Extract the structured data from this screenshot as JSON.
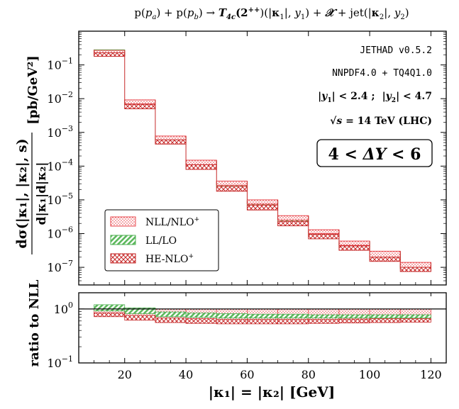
{
  "chart_data": {
    "type": "step-band",
    "title": "p(p_a) + p(p_b) → T_4c(2⁺⁺)(|κ₁|, y₁) + 𝒳 + jet(|κ₂|, y₂)",
    "title_parts": [
      "p(",
      "p",
      "a",
      ") + p(",
      "p",
      "b",
      ") → ",
      "T",
      "4c",
      "(2",
      "++",
      ")(|",
      "κ",
      "1",
      "|, ",
      "y",
      "1",
      ") + ",
      "𝒳",
      " + jet(|",
      "κ",
      "2",
      "|, ",
      "y",
      "2",
      ")"
    ],
    "xlabel": "|κ₁| = |κ₂| [GeV]",
    "ylabel_main": "dσ(|κ₁|, |κ₂|, s) / d|κ₁|d|κ₂| [pb/GeV²]",
    "ylabel_main_parts": {
      "num": "dσ(|κ₁|, |κ₂|, s)",
      "den": "d|κ₁|d|κ₂|",
      "unit": "[pb/GeV²]"
    },
    "ylabel_ratio": "ratio to NLL",
    "xlim": [
      5,
      125
    ],
    "ylim_main": [
      3e-08,
      1
    ],
    "ylim_ratio": [
      0.1,
      2
    ],
    "xticks": [
      20,
      40,
      60,
      80,
      100,
      120
    ],
    "xtick_labels": [
      "20",
      "40",
      "60",
      "80",
      "100",
      "120"
    ],
    "yticks_main": [
      {
        "m": "10",
        "e": "−1",
        "v": 0.1
      },
      {
        "m": "10",
        "e": "−2",
        "v": 0.01
      },
      {
        "m": "10",
        "e": "−3",
        "v": 0.001
      },
      {
        "m": "10",
        "e": "−4",
        "v": 0.0001
      },
      {
        "m": "10",
        "e": "−5",
        "v": 1e-05
      },
      {
        "m": "10",
        "e": "−6",
        "v": 1e-06
      },
      {
        "m": "10",
        "e": "−7",
        "v": 1e-07
      }
    ],
    "yticks_ratio": [
      {
        "m": "10",
        "e": "0",
        "v": 1
      },
      {
        "m": "10",
        "e": "−1",
        "v": 0.1
      }
    ],
    "bins": [
      [
        10,
        20
      ],
      [
        20,
        30
      ],
      [
        30,
        40
      ],
      [
        40,
        50
      ],
      [
        50,
        60
      ],
      [
        60,
        70
      ],
      [
        70,
        80
      ],
      [
        80,
        90
      ],
      [
        90,
        100
      ],
      [
        100,
        110
      ],
      [
        110,
        120
      ]
    ],
    "series": [
      {
        "name": "NLL/NLO⁺",
        "label_parts": [
          "NLL/NLO",
          "+"
        ],
        "color": "#e8474d",
        "low": [
          0.2,
          0.007,
          0.0006,
          0.00011,
          2.7e-05,
          7.5e-06,
          2.5e-06,
          1e-06,
          4.5e-07,
          2e-07,
          1e-07
        ],
        "high": [
          0.27,
          0.0092,
          0.00078,
          0.00015,
          3.6e-05,
          1e-05,
          3.4e-06,
          1.3e-06,
          6e-07,
          3e-07,
          1.4e-07
        ]
      },
      {
        "name": "LL/LO",
        "label_parts": [
          "LL/LO",
          ""
        ],
        "color": "#4caf50",
        "low": [
          0.19,
          0.0065,
          0.00058,
          0.000105,
          2.5e-05,
          6.8e-06,
          2.2e-06,
          9e-07,
          4e-07,
          1.8e-07,
          9e-08
        ],
        "high": [
          0.28,
          0.0088,
          0.00075,
          0.00014,
          3.3e-05,
          9e-06,
          3.1e-06,
          1.2e-06,
          5.5e-07,
          2.6e-07,
          1.2e-07
        ]
      },
      {
        "name": "HE-NLO⁺",
        "label_parts": [
          "HE-NLO",
          "+"
        ],
        "color": "#c62828",
        "low": [
          0.18,
          0.005,
          0.00045,
          8e-05,
          1.8e-05,
          5e-06,
          1.7e-06,
          7e-07,
          3.2e-07,
          1.5e-07,
          7.5e-08
        ],
        "high": [
          0.23,
          0.0068,
          0.0006,
          0.00011,
          2.5e-05,
          7e-06,
          2.3e-06,
          9.5e-07,
          4.3e-07,
          2e-07,
          1e-07
        ]
      }
    ],
    "ratio_series": [
      {
        "name": "NLL/NLO⁺",
        "low": [
          0.8,
          0.68,
          0.6,
          0.59,
          0.58,
          0.58,
          0.59,
          0.6,
          0.61,
          0.62,
          0.62
        ],
        "high": [
          1.0,
          1.0,
          1.0,
          1.0,
          1.0,
          1.0,
          1.0,
          1.0,
          1.0,
          1.0,
          1.0
        ]
      },
      {
        "name": "LL/LO",
        "low": [
          0.92,
          0.82,
          0.72,
          0.7,
          0.68,
          0.68,
          0.68,
          0.68,
          0.68,
          0.68,
          0.68
        ],
        "high": [
          1.2,
          1.05,
          0.88,
          0.84,
          0.82,
          0.8,
          0.8,
          0.78,
          0.78,
          0.78,
          0.78
        ]
      },
      {
        "name": "HE-NLO⁺",
        "low": [
          0.72,
          0.62,
          0.56,
          0.54,
          0.53,
          0.53,
          0.53,
          0.54,
          0.55,
          0.56,
          0.57
        ],
        "high": [
          0.85,
          0.76,
          0.68,
          0.66,
          0.64,
          0.64,
          0.64,
          0.64,
          0.65,
          0.66,
          0.66
        ]
      }
    ],
    "annotations": {
      "generator": "JETHAD v0.5.2",
      "pdf": "NNPDF4.0 + TQ4Q1.0",
      "cuts": {
        "y1": "|y",
        "y1sub": "1",
        "y1cut": "| < 2.4 ;",
        "y2": "|y",
        "y2sub": "2",
        "y2cut": "| < 4.7"
      },
      "energy": {
        "pre": "√s",
        "post": " = 14 TeV (LHC)"
      },
      "rapidity_window": {
        "pre": "4 < ",
        "sym": "ΔY",
        "post": " < 6"
      }
    },
    "legend_position": "lower-left"
  }
}
